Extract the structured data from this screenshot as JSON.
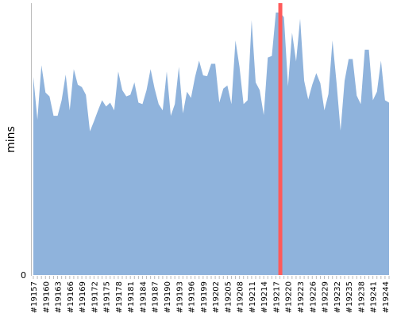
{
  "chart_data": {
    "type": "area",
    "title": "",
    "xlabel": "",
    "ylabel": "mins",
    "ylim": [
      0,
      350
    ],
    "y_ticks": [
      {
        "value": 0,
        "label": "0"
      }
    ],
    "x_tick_labels": [
      "#19157",
      "#19160",
      "#19163",
      "#19166",
      "#19169",
      "#19172",
      "#19175",
      "#19178",
      "#19181",
      "#19184",
      "#19187",
      "#19190",
      "#19193",
      "#19196",
      "#19199",
      "#19202",
      "#19205",
      "#19208",
      "#19211",
      "#19214",
      "#19217",
      "#19220",
      "#19223",
      "#19226",
      "#19229",
      "#19232",
      "#19235",
      "#19238",
      "#19241",
      "#19244"
    ],
    "x_start": 19157,
    "x": [
      19157,
      19158,
      19159,
      19160,
      19161,
      19162,
      19163,
      19164,
      19165,
      19166,
      19167,
      19168,
      19169,
      19170,
      19171,
      19172,
      19173,
      19174,
      19175,
      19176,
      19177,
      19178,
      19179,
      19180,
      19181,
      19182,
      19183,
      19184,
      19185,
      19186,
      19187,
      19188,
      19189,
      19190,
      19191,
      19192,
      19193,
      19194,
      19195,
      19196,
      19197,
      19198,
      19199,
      19200,
      19201,
      19202,
      19203,
      19204,
      19205,
      19206,
      19207,
      19208,
      19209,
      19210,
      19211,
      19212,
      19213,
      19214,
      19215,
      19216,
      19217,
      19218,
      19219,
      19220,
      19221,
      19222,
      19223,
      19224,
      19225,
      19226,
      19227,
      19228,
      19229,
      19230,
      19231,
      19232,
      19233,
      19234,
      19235,
      19236,
      19237,
      19238,
      19239,
      19240,
      19241,
      19242,
      19243,
      19244,
      19245
    ],
    "series": [
      {
        "name": "",
        "values": [
          255,
          200,
          270,
          235,
          230,
          205,
          205,
          225,
          258,
          212,
          265,
          245,
          242,
          232,
          185,
          198,
          212,
          225,
          217,
          222,
          212,
          262,
          238,
          230,
          232,
          248,
          222,
          220,
          238,
          265,
          240,
          220,
          212,
          262,
          205,
          220,
          268,
          208,
          236,
          228,
          255,
          276,
          257,
          256,
          272,
          272,
          222,
          240,
          244,
          220,
          302,
          268,
          220,
          225,
          328,
          248,
          238,
          206,
          280,
          282,
          338,
          338,
          332,
          243,
          312,
          275,
          330,
          250,
          226,
          245,
          260,
          247,
          212,
          233,
          302,
          248,
          186,
          250,
          278,
          278,
          231,
          220,
          290,
          290,
          225,
          236,
          276,
          225,
          222
        ]
      }
    ],
    "highlight": {
      "x": 19218,
      "color": "#ff5a5a"
    },
    "colors": {
      "area": "#8fb3dc",
      "highlight": "#ff5a5a",
      "axis": "#bbbbbb"
    }
  }
}
